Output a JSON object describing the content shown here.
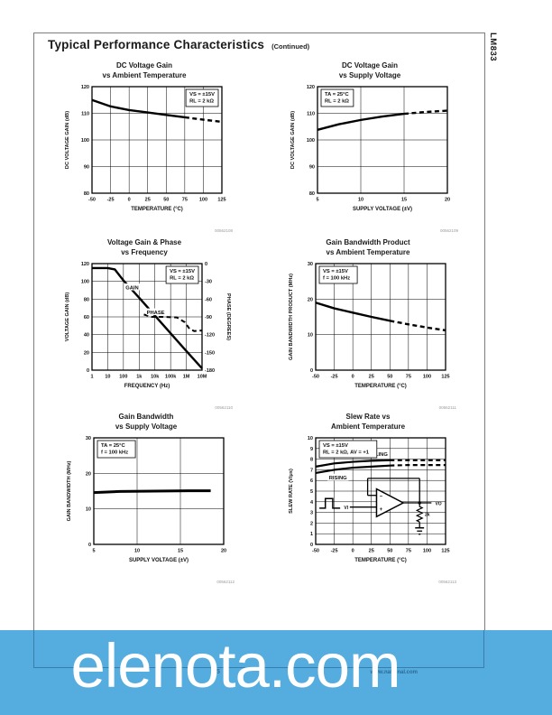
{
  "page": {
    "header_title": "Typical Performance Characteristics",
    "header_continued": "(Continued)",
    "side_label": "LM833",
    "footer_page_number": "5",
    "footer_site": "www.national.com",
    "watermark": "elenota.com",
    "banner_color": "#55acde"
  },
  "chart_data": [
    {
      "id": "dc-voltage-gain-vs-ambient-temperature",
      "type": "line",
      "title1": "DC Voltage Gain",
      "title2": "vs Ambient Temperature",
      "code": "00562108",
      "xlabel": "TEMPERATURE (°C)",
      "ylabel": "DC VOLTAGE GAIN (dB)",
      "xlim": [
        -50,
        125
      ],
      "ylim": [
        80,
        120
      ],
      "grid": true,
      "xtick_vals": [
        -50,
        -25,
        0,
        25,
        50,
        75,
        100,
        125
      ],
      "xtick_labels": [
        "-50",
        "-25",
        "0",
        "25",
        "50",
        "75",
        "100",
        "125"
      ],
      "ytick_vals": [
        80,
        90,
        100,
        110,
        120
      ],
      "ytick_labels": [
        "80",
        "90",
        "100",
        "110",
        "120"
      ],
      "annotation": {
        "lines": [
          "VS = ±15V",
          "RL = 2 kΩ"
        ],
        "pos": "tr"
      },
      "series": [
        {
          "name": "dc-gain",
          "x": [
            -50,
            -25,
            0,
            25,
            50,
            75,
            100,
            125
          ],
          "y": [
            115,
            112.6,
            111.2,
            110.3,
            109.4,
            108.5,
            107.6,
            106.8
          ],
          "width": 2.4,
          "dash_from": 78
        }
      ]
    },
    {
      "id": "dc-voltage-gain-vs-supply-voltage",
      "type": "line",
      "title1": "DC Voltage Gain",
      "title2": "vs Supply Voltage",
      "code": "00562109",
      "xlabel": "SUPPLY VOLTAGE (±V)",
      "ylabel": "DC VOLTAGE GAIN (dB)",
      "xlim": [
        5,
        20
      ],
      "ylim": [
        80,
        120
      ],
      "grid": true,
      "xtick_vals": [
        5,
        10,
        15,
        20
      ],
      "xtick_labels": [
        "5",
        "10",
        "15",
        "20"
      ],
      "ytick_vals": [
        80,
        90,
        100,
        110,
        120
      ],
      "ytick_labels": [
        "80",
        "90",
        "100",
        "110",
        "120"
      ],
      "annotation": {
        "lines": [
          "TA = 25°C",
          "RL = 2 kΩ"
        ],
        "pos": "tl"
      },
      "series": [
        {
          "name": "dc-gain",
          "x": [
            5,
            7.5,
            10,
            12.5,
            15,
            17.5,
            20
          ],
          "y": [
            103.8,
            105.9,
            107.5,
            108.8,
            109.8,
            110.5,
            111
          ],
          "width": 2.4,
          "dash_from": 17
        }
      ]
    },
    {
      "id": "voltage-gain-and-phase-vs-frequency",
      "type": "line",
      "title1": "Voltage Gain & Phase",
      "title2": "vs Frequency",
      "code": "00562110",
      "xlabel": "FREQUENCY (Hz)",
      "ylabel": "VOLTAGE GAIN (dB)",
      "y2label": "PHASE (DEGREES)",
      "x_is_log10": true,
      "xlim": [
        0,
        7
      ],
      "ylim": [
        0,
        120
      ],
      "y2lim": [
        -180,
        0
      ],
      "grid": true,
      "xtick_vals": [
        0,
        1,
        2,
        3,
        4,
        5,
        6,
        7
      ],
      "xtick_labels": [
        "1",
        "10",
        "100",
        "1k",
        "10k",
        "100k",
        "1M",
        "10M"
      ],
      "ytick_vals": [
        0,
        20,
        40,
        60,
        80,
        100,
        120
      ],
      "ytick_labels": [
        "0",
        "20",
        "40",
        "60",
        "80",
        "100",
        "120"
      ],
      "y2tick_labels": [
        "0",
        "-30",
        "-60",
        "-90",
        "-120",
        "-150",
        "-180"
      ],
      "annotation": {
        "lines": [
          "VS = ±15V",
          "RL = 2 kΩ"
        ],
        "pos": "tr"
      },
      "labels": [
        {
          "text": "GAIN",
          "x": 2.55,
          "y": 93
        },
        {
          "text": "PHASE",
          "x": 4.05,
          "y": 65
        }
      ],
      "series": [
        {
          "name": "gain",
          "x": [
            0,
            1,
            1.45,
            2,
            3,
            4,
            5,
            6,
            7
          ],
          "y": [
            115,
            115,
            113.5,
            101,
            81.5,
            61.5,
            41.5,
            21.5,
            2
          ],
          "width": 2.4
        },
        {
          "name": "phase",
          "axis": "y2",
          "dash": true,
          "width": 2,
          "x": [
            3.3,
            3.8,
            4.5,
            5.4,
            5.9,
            6.2,
            6.5,
            7
          ],
          "y": [
            -86,
            -90,
            -90,
            -91,
            -99,
            -110,
            -114,
            -113
          ]
        }
      ]
    },
    {
      "id": "gain-bandwidth-product-vs-ambient-temperature",
      "type": "line",
      "title1": "Gain Bandwidth Product",
      "title2": "vs Ambient Temperature",
      "code": "00562111",
      "xlabel": "TEMPERATURE (°C)",
      "ylabel": "GAIN BANDWIDTH PRODUCT (MHz)",
      "xlim": [
        -50,
        125
      ],
      "ylim": [
        0,
        30
      ],
      "grid": true,
      "xtick_vals": [
        -50,
        -25,
        0,
        25,
        50,
        75,
        100,
        125
      ],
      "xtick_labels": [
        "-50",
        "-25",
        "0",
        "25",
        "50",
        "75",
        "100",
        "125"
      ],
      "ytick_vals": [
        0,
        10,
        20,
        30
      ],
      "ytick_labels": [
        "0",
        "10",
        "20",
        "30"
      ],
      "annotation": {
        "lines": [
          "VS = ±15V",
          "f = 100 kHz"
        ],
        "pos": "tl"
      },
      "series": [
        {
          "name": "gbw-product",
          "x": [
            -50,
            -25,
            0,
            25,
            50,
            75,
            100,
            125
          ],
          "y": [
            19,
            17.4,
            16.2,
            15,
            13.9,
            12.9,
            12,
            11.2
          ],
          "width": 2.4,
          "dash_from": 55
        }
      ]
    },
    {
      "id": "gain-bandwidth-vs-supply-voltage",
      "type": "line",
      "title1": "Gain Bandwidth",
      "title2": "vs Supply Voltage",
      "code": "00562112",
      "xlabel": "SUPPLY VOLTAGE (±V)",
      "ylabel": "GAIN BANDWIDTH (MHz)",
      "xlim": [
        5,
        20
      ],
      "ylim": [
        0,
        30
      ],
      "grid": true,
      "xtick_vals": [
        5,
        10,
        15,
        20
      ],
      "xtick_labels": [
        "5",
        "10",
        "15",
        "20"
      ],
      "ytick_vals": [
        0,
        10,
        20,
        30
      ],
      "ytick_labels": [
        "0",
        "10",
        "20",
        "30"
      ],
      "annotation": {
        "lines": [
          "TA = 25°C",
          "f = 100 kHz"
        ],
        "pos": "tl"
      },
      "series": [
        {
          "name": "gain-bandwidth",
          "x": [
            5,
            8,
            12,
            16,
            18.5
          ],
          "y": [
            14.6,
            14.9,
            15,
            15.1,
            15.1
          ],
          "width": 3
        }
      ]
    },
    {
      "id": "slew-rate-vs-ambient-temperature",
      "type": "line",
      "title1": "Slew Rate vs",
      "title2": "Ambient Temperature",
      "code": "00562113",
      "xlabel": "TEMPERATURE (°C)",
      "ylabel": "SLEW RATE (V/μs)",
      "xlim": [
        -50,
        125
      ],
      "ylim": [
        0,
        10
      ],
      "grid": true,
      "xtick_vals": [
        -50,
        -25,
        0,
        25,
        50,
        75,
        100,
        125
      ],
      "xtick_labels": [
        "-50",
        "-25",
        "0",
        "25",
        "50",
        "75",
        "100",
        "125"
      ],
      "ytick_vals": [
        0,
        1,
        2,
        3,
        4,
        5,
        6,
        7,
        8,
        9,
        10
      ],
      "ytick_labels": [
        "0",
        "1",
        "2",
        "3",
        "4",
        "5",
        "6",
        "7",
        "8",
        "9",
        "10"
      ],
      "annotation": {
        "lines": [
          "VS = ±15V",
          "RL = 2 kΩ, AV = +1"
        ],
        "pos": "tl"
      },
      "labels": [
        {
          "text": "FALLING",
          "x": 32,
          "y": 8.45
        },
        {
          "text": "RISING",
          "x": -20,
          "y": 6.25
        }
      ],
      "series": [
        {
          "name": "falling",
          "x": [
            -50,
            -25,
            0,
            25,
            50,
            75,
            100,
            125
          ],
          "y": [
            7.3,
            7.6,
            7.75,
            7.85,
            7.9,
            7.9,
            7.9,
            7.9
          ],
          "width": 2.2,
          "dash_from": 72
        },
        {
          "name": "rising",
          "x": [
            -50,
            -25,
            0,
            25,
            50,
            75,
            100,
            125
          ],
          "y": [
            6.7,
            7.0,
            7.2,
            7.3,
            7.4,
            7.45,
            7.45,
            7.45
          ],
          "width": 2.2,
          "dash_from": 72
        }
      ],
      "inset": {
        "type": "opamp-follower",
        "resistor_label": "2k",
        "vin_label": "VI",
        "vout_label": "VO"
      }
    }
  ]
}
